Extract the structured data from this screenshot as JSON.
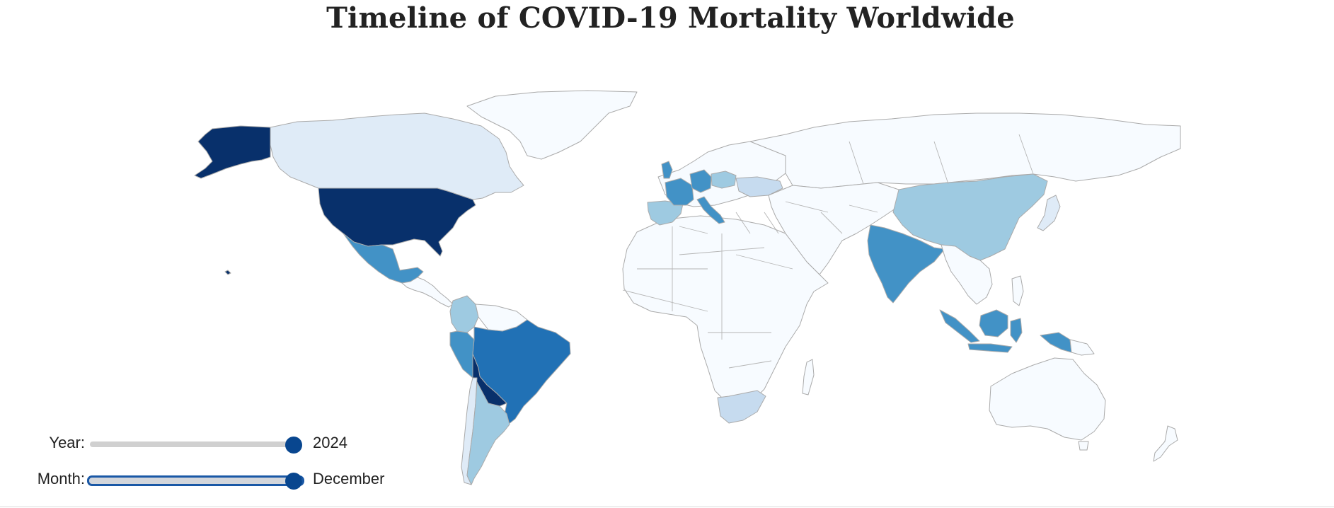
{
  "title": "Timeline of COVID-19 Mortality Worldwide",
  "colors": {
    "level0": "#f7fbff",
    "level1": "#dfebf7",
    "level2": "#c6dbef",
    "level3": "#9ecae1",
    "level4": "#6baed6",
    "level5": "#4292c6",
    "level6": "#2171b5",
    "level7": "#08519c",
    "level8": "#08306b",
    "border": "#aaaaaa",
    "slider_thumb": "#08468f",
    "slider_track": "#d0d0d0",
    "focus_ring": "#1a58a6"
  },
  "controls": {
    "year": {
      "label": "Year:",
      "value": "2024",
      "level": 1.0
    },
    "month": {
      "label": "Month:",
      "value": "December",
      "level": 1.0
    }
  },
  "countries": [
    {
      "name": "Alaska (United States)",
      "shade": 8
    },
    {
      "name": "Canada",
      "shade": 1
    },
    {
      "name": "Greenland",
      "shade": 0
    },
    {
      "name": "United States",
      "shade": 8
    },
    {
      "name": "Mexico",
      "shade": 5
    },
    {
      "name": "Brazil",
      "shade": 6
    },
    {
      "name": "Colombia",
      "shade": 3
    },
    {
      "name": "Peru",
      "shade": 5
    },
    {
      "name": "Argentina",
      "shade": 3
    },
    {
      "name": "Chile",
      "shade": 1
    },
    {
      "name": "France",
      "shade": 5
    },
    {
      "name": "Germany",
      "shade": 5
    },
    {
      "name": "Spain",
      "shade": 3
    },
    {
      "name": "Italy",
      "shade": 5
    },
    {
      "name": "United Kingdom",
      "shade": 5
    },
    {
      "name": "Poland",
      "shade": 3
    },
    {
      "name": "Ukraine",
      "shade": 2
    },
    {
      "name": "Russia",
      "shade": 0
    },
    {
      "name": "China",
      "shade": 3
    },
    {
      "name": "India",
      "shade": 5
    },
    {
      "name": "Indonesia",
      "shade": 5
    },
    {
      "name": "South Africa",
      "shade": 2
    },
    {
      "name": "Africa (other)",
      "shade": 0
    },
    {
      "name": "Australia",
      "shade": 0
    },
    {
      "name": "Japan",
      "shade": 1
    }
  ]
}
